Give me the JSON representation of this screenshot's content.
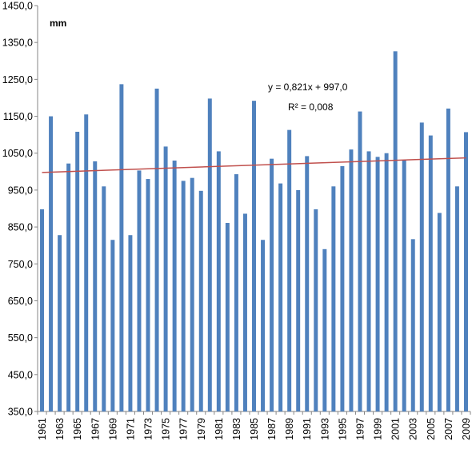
{
  "chart_data": {
    "type": "bar",
    "unit_label": "mm",
    "trend": {
      "equation": "y = 0,821x + 997,0",
      "r2": "R² = 0,008",
      "slope": 0.821,
      "intercept": 997.0
    },
    "ylim": [
      350,
      1450
    ],
    "yticks": [
      350,
      450,
      550,
      650,
      750,
      850,
      950,
      1050,
      1150,
      1250,
      1350,
      1450
    ],
    "ytick_labels": [
      "350,0",
      "450,0",
      "550,0",
      "650,0",
      "750,0",
      "850,0",
      "950,0",
      "1050,0",
      "1150,0",
      "1250,0",
      "1350,0",
      "1450,0"
    ],
    "categories": [
      1961,
      1962,
      1963,
      1964,
      1965,
      1966,
      1967,
      1968,
      1969,
      1970,
      1971,
      1972,
      1973,
      1974,
      1975,
      1976,
      1977,
      1978,
      1979,
      1980,
      1981,
      1982,
      1983,
      1984,
      1985,
      1986,
      1987,
      1988,
      1989,
      1990,
      1991,
      1992,
      1993,
      1994,
      1995,
      1996,
      1997,
      1998,
      1999,
      2000,
      2001,
      2002,
      2003,
      2004,
      2005,
      2006,
      2007,
      2008,
      2009
    ],
    "xtick_labels": [
      "1961",
      "1963",
      "1965",
      "1967",
      "1969",
      "1971",
      "1973",
      "1975",
      "1977",
      "1979",
      "1981",
      "1983",
      "1985",
      "1987",
      "1989",
      "1991",
      "1993",
      "1995",
      "1997",
      "1999",
      "2001",
      "2003",
      "2005",
      "2007",
      "2009"
    ],
    "values": [
      898,
      1150,
      828,
      1022,
      1108,
      1155,
      1028,
      960,
      815,
      1237,
      828,
      1003,
      980,
      1225,
      1068,
      1030,
      975,
      983,
      948,
      1198,
      1055,
      861,
      993,
      886,
      1192,
      815,
      1035,
      968,
      1113,
      950,
      1042,
      898,
      790,
      960,
      1015,
      1060,
      1163,
      1055,
      1040,
      1050,
      1326,
      1032,
      817,
      1133,
      1098,
      888,
      1171,
      960,
      1107
    ],
    "colors": {
      "bar": "#4f81bd",
      "trend": "#c0504d"
    },
    "grid": false
  }
}
